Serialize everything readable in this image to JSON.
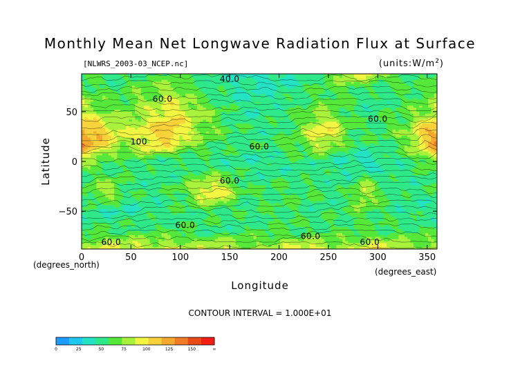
{
  "chart_data": {
    "type": "heatmap",
    "title": "Monthly Mean Net Longwave Radiation Flux at Surface",
    "subtitle": "[NLWRS_2003-03_NCEP.nc]",
    "units": "(units:W/m^2)",
    "xlabel": "Longitude",
    "ylabel": "Latitude",
    "x_unit_label": "(degrees_east)",
    "y_unit_label": "(degrees_north)",
    "xlim": [
      0,
      360
    ],
    "ylim": [
      -88,
      88
    ],
    "x_ticks": [
      "0",
      "50",
      "100",
      "150",
      "200",
      "250",
      "300",
      "350"
    ],
    "x_tick_values": [
      0,
      50,
      100,
      150,
      200,
      250,
      300,
      350
    ],
    "y_ticks": [
      "50",
      "0",
      "−50"
    ],
    "y_tick_values": [
      50,
      0,
      -50
    ],
    "contour_interval_text": "CONTOUR INTERVAL = 1.000E+01",
    "contour_labels": [
      {
        "text": "40.0",
        "lon": 150,
        "lat": 80
      },
      {
        "text": "60.0",
        "lon": 82,
        "lat": 60
      },
      {
        "text": "60.0",
        "lon": 300,
        "lat": 40
      },
      {
        "text": "100",
        "lon": 58,
        "lat": 17
      },
      {
        "text": "60.0",
        "lon": 180,
        "lat": 12
      },
      {
        "text": "60.0",
        "lon": 150,
        "lat": -22
      },
      {
        "text": "60.0",
        "lon": 105,
        "lat": -67
      },
      {
        "text": "60.0",
        "lon": 30,
        "lat": -84
      },
      {
        "text": "60.0",
        "lon": 232,
        "lat": -78
      },
      {
        "text": "60.0",
        "lon": 292,
        "lat": -84
      }
    ],
    "colorbar": {
      "levels": [
        "0",
        "25",
        "50",
        "75",
        "100",
        "125",
        "150",
        "∞"
      ],
      "colors": [
        "#1e9bff",
        "#1fc7ef",
        "#24e3c4",
        "#2ee88a",
        "#55e83a",
        "#a8f23c",
        "#f2f542",
        "#f7d23a",
        "#f4a82e",
        "#f07a26",
        "#e84a18",
        "#f21f17"
      ]
    },
    "value_scale": {
      "min": 0,
      "max": 180,
      "grid_lon": [
        0,
        15,
        30,
        45,
        60,
        75,
        90,
        105,
        120,
        135,
        150,
        165,
        180,
        195,
        210,
        225,
        240,
        255,
        270,
        285,
        300,
        315,
        330,
        345,
        360
      ],
      "grid_lat": [
        88,
        70,
        50,
        30,
        15,
        0,
        -15,
        -30,
        -50,
        -70,
        -88
      ],
      "values": [
        [
          60,
          55,
          50,
          55,
          60,
          60,
          65,
          60,
          55,
          50,
          45,
          40,
          40,
          40,
          45,
          50,
          60,
          70,
          90,
          95,
          80,
          70,
          60,
          55,
          60
        ],
        [
          70,
          65,
          60,
          65,
          75,
          70,
          85,
          70,
          60,
          55,
          50,
          45,
          45,
          45,
          50,
          55,
          60,
          65,
          60,
          55,
          50,
          55,
          60,
          65,
          70
        ],
        [
          90,
          80,
          70,
          70,
          80,
          90,
          100,
          95,
          80,
          70,
          55,
          50,
          50,
          55,
          60,
          65,
          75,
          70,
          60,
          55,
          55,
          60,
          65,
          75,
          90
        ],
        [
          130,
          120,
          100,
          90,
          95,
          110,
          120,
          95,
          80,
          70,
          60,
          55,
          55,
          55,
          60,
          75,
          105,
          100,
          70,
          60,
          60,
          65,
          75,
          110,
          130
        ],
        [
          130,
          115,
          90,
          80,
          90,
          105,
          95,
          80,
          70,
          60,
          55,
          55,
          55,
          60,
          65,
          70,
          85,
          75,
          60,
          55,
          55,
          60,
          70,
          100,
          130
        ],
        [
          80,
          65,
          55,
          60,
          60,
          55,
          50,
          50,
          50,
          50,
          50,
          50,
          45,
          45,
          50,
          55,
          55,
          50,
          45,
          35,
          45,
          50,
          55,
          65,
          80
        ],
        [
          60,
          60,
          65,
          55,
          55,
          50,
          55,
          60,
          70,
          75,
          65,
          55,
          55,
          55,
          55,
          55,
          55,
          50,
          50,
          60,
          55,
          50,
          50,
          55,
          60
        ],
        [
          55,
          80,
          85,
          60,
          55,
          55,
          60,
          70,
          95,
          110,
          85,
          60,
          60,
          60,
          60,
          60,
          60,
          55,
          55,
          95,
          70,
          55,
          55,
          55,
          55
        ],
        [
          50,
          50,
          45,
          45,
          50,
          50,
          55,
          55,
          60,
          60,
          55,
          55,
          55,
          60,
          60,
          55,
          55,
          55,
          60,
          70,
          60,
          55,
          50,
          50,
          50
        ],
        [
          60,
          60,
          60,
          60,
          60,
          60,
          60,
          60,
          55,
          55,
          55,
          55,
          60,
          60,
          60,
          60,
          60,
          60,
          60,
          60,
          60,
          60,
          60,
          60,
          60
        ],
        [
          80,
          90,
          95,
          95,
          95,
          90,
          90,
          85,
          85,
          95,
          90,
          80,
          80,
          85,
          90,
          95,
          95,
          85,
          85,
          95,
          100,
          90,
          85,
          85,
          80
        ]
      ]
    }
  }
}
